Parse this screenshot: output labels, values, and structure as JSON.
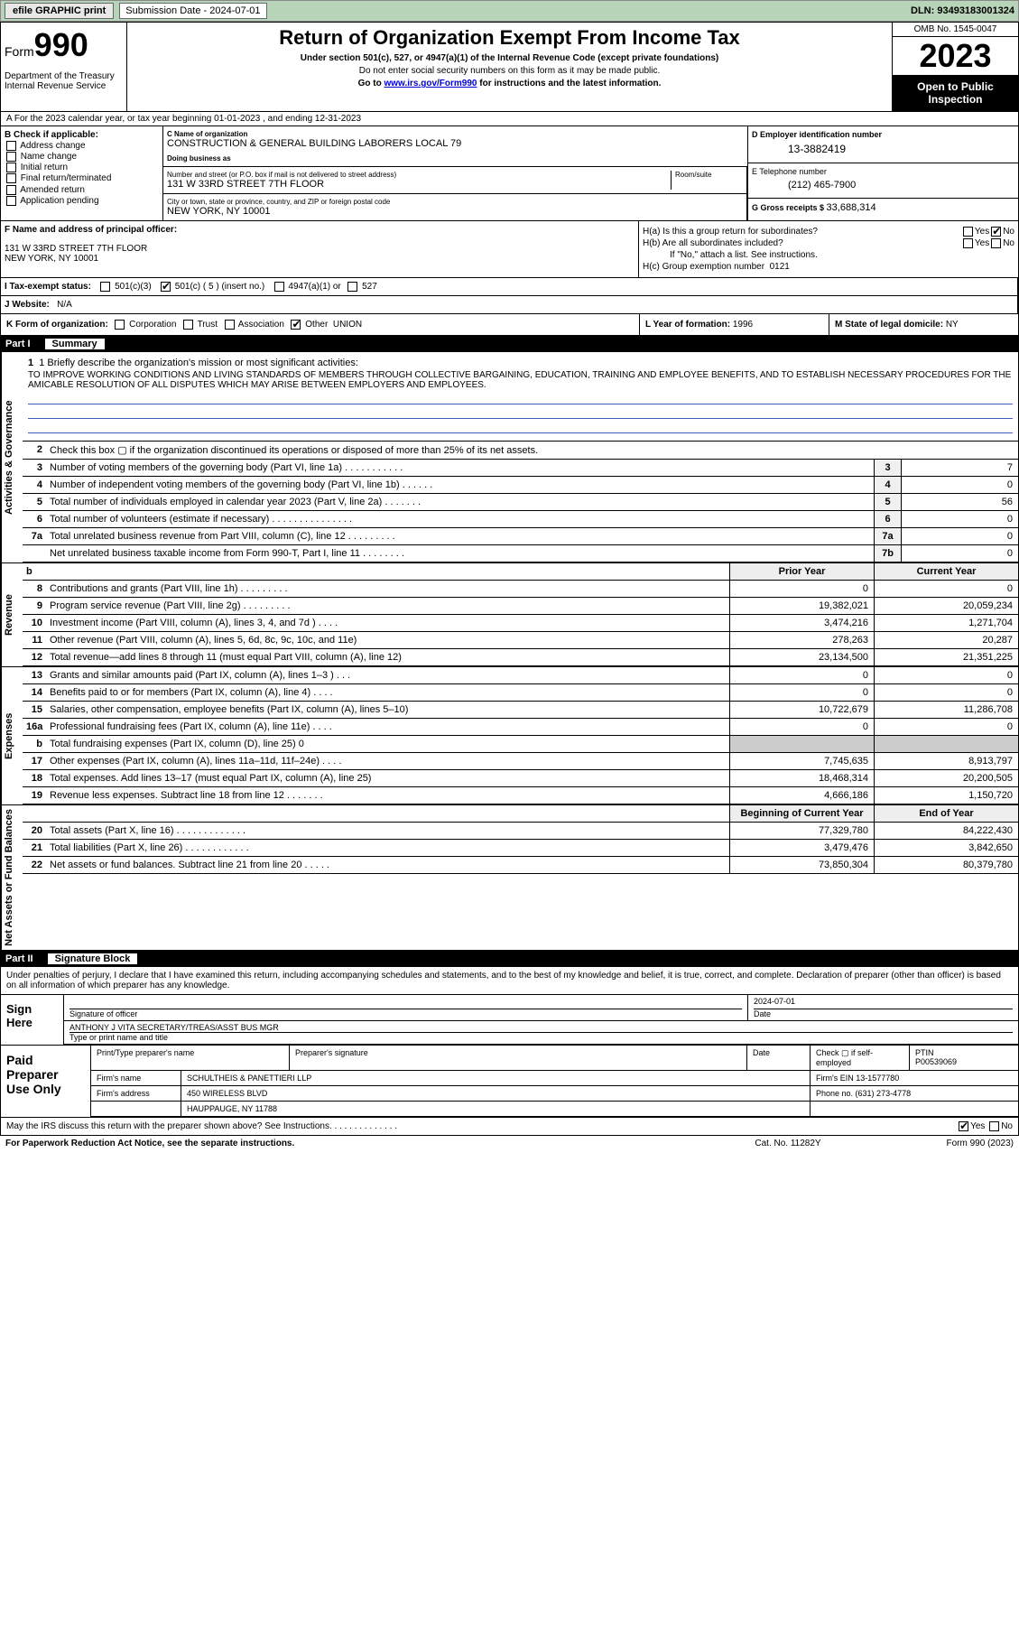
{
  "topbar": {
    "efile": "efile GRAPHIC print",
    "sub_label": "Submission Date - 2024-07-01",
    "dln": "DLN: 93493183001324"
  },
  "header": {
    "form_prefix": "Form",
    "form_num": "990",
    "title": "Return of Organization Exempt From Income Tax",
    "subtitle": "Under section 501(c), 527, or 4947(a)(1) of the Internal Revenue Code (except private foundations)",
    "ssn_note": "Do not enter social security numbers on this form as it may be made public.",
    "goto": "Go to ",
    "goto_link": "www.irs.gov/Form990",
    "goto_suffix": " for instructions and the latest information.",
    "dept": "Department of the Treasury Internal Revenue Service",
    "omb": "OMB No. 1545-0047",
    "year": "2023",
    "open": "Open to Public Inspection"
  },
  "section_a": "A  For the 2023 calendar year, or tax year beginning 01-01-2023   , and ending 12-31-2023",
  "col_b": {
    "hdr": "B Check if applicable:",
    "opts": [
      "Address change",
      "Name change",
      "Initial return",
      "Final return/terminated",
      "Amended return",
      "Application pending"
    ]
  },
  "col_c": {
    "name_lbl": "C Name of organization",
    "name": "CONSTRUCTION & GENERAL BUILDING LABORERS LOCAL 79",
    "dba_lbl": "Doing business as",
    "street_lbl": "Number and street (or P.O. box if mail is not delivered to street address)",
    "street": "131 W 33RD STREET 7TH FLOOR",
    "room_lbl": "Room/suite",
    "city_lbl": "City or town, state or province, country, and ZIP or foreign postal code",
    "city": "NEW YORK, NY  10001"
  },
  "col_d": {
    "ein_lbl": "D Employer identification number",
    "ein": "13-3882419",
    "tel_lbl": "E Telephone number",
    "tel": "(212) 465-7900",
    "gross_lbl": "G Gross receipts $ ",
    "gross": "33,688,314"
  },
  "col_f": {
    "lbl": "F Name and address of principal officer:",
    "addr1": "131 W 33RD STREET 7TH FLOOR",
    "addr2": "NEW YORK, NY  10001"
  },
  "col_h": {
    "ha": "H(a)  Is this a group return for subordinates?",
    "hb": "H(b)  Are all subordinates included?",
    "hb_note": "If \"No,\" attach a list. See instructions.",
    "hc": "H(c)  Group exemption number ",
    "hc_val": "0121",
    "yes": "Yes",
    "no": "No"
  },
  "row_i": {
    "lbl": "I   Tax-exempt status:",
    "o1": "501(c)(3)",
    "o2": "501(c) ( 5 ) (insert no.)",
    "o3": "4947(a)(1) or",
    "o4": "527"
  },
  "row_j": {
    "lbl": "J   Website: ",
    "val": "N/A"
  },
  "row_k": {
    "lbl": "K Form of organization:",
    "opts": [
      "Corporation",
      "Trust",
      "Association",
      "Other"
    ],
    "other_val": "UNION"
  },
  "row_l": {
    "lbl": "L Year of formation: ",
    "val": "1996"
  },
  "row_m": {
    "lbl": "M State of legal domicile: ",
    "val": "NY"
  },
  "parts": {
    "p1": "Part I",
    "p1_title": "Summary",
    "p2": "Part II",
    "p2_title": "Signature Block"
  },
  "mission": {
    "lbl": "1   Briefly describe the organization's mission or most significant activities:",
    "txt": "TO IMPROVE WORKING CONDITIONS AND LIVING STANDARDS OF MEMBERS THROUGH COLLECTIVE BARGAINING, EDUCATION, TRAINING AND EMPLOYEE BENEFITS, AND TO ESTABLISH NECESSARY PROCEDURES FOR THE AMICABLE RESOLUTION OF ALL DISPUTES WHICH MAY ARISE BETWEEN EMPLOYERS AND EMPLOYEES."
  },
  "gov_rows": [
    {
      "n": "2",
      "d": "Check this box ▢ if the organization discontinued its operations or disposed of more than 25% of its net assets.",
      "box": "",
      "v": ""
    },
    {
      "n": "3",
      "d": "Number of voting members of the governing body (Part VI, line 1a)  .  .  .  .  .  .  .  .  .  .  .",
      "box": "3",
      "v": "7"
    },
    {
      "n": "4",
      "d": "Number of independent voting members of the governing body (Part VI, line 1b)  .  .  .  .  .  .",
      "box": "4",
      "v": "0"
    },
    {
      "n": "5",
      "d": "Total number of individuals employed in calendar year 2023 (Part V, line 2a)  .  .  .  .  .  .  .",
      "box": "5",
      "v": "56"
    },
    {
      "n": "6",
      "d": "Total number of volunteers (estimate if necessary)   .  .  .  .  .  .  .  .  .  .  .  .  .  .  .",
      "box": "6",
      "v": "0"
    },
    {
      "n": "7a",
      "d": "Total unrelated business revenue from Part VIII, column (C), line 12  .  .  .  .  .  .  .  .  .",
      "box": "7a",
      "v": "0"
    },
    {
      "n": "",
      "d": "Net unrelated business taxable income from Form 990-T, Part I, line 11  .  .  .  .  .  .  .  .",
      "box": "7b",
      "v": "0"
    }
  ],
  "rev_hdr": {
    "b": "b",
    "py": "Prior Year",
    "cy": "Current Year"
  },
  "rev_rows": [
    {
      "n": "8",
      "d": "Contributions and grants (Part VIII, line 1h)   .  .  .  .  .  .  .  .  .",
      "py": "0",
      "cy": "0"
    },
    {
      "n": "9",
      "d": "Program service revenue (Part VIII, line 2g)   .  .  .  .  .  .  .  .  .",
      "py": "19,382,021",
      "cy": "20,059,234"
    },
    {
      "n": "10",
      "d": "Investment income (Part VIII, column (A), lines 3, 4, and 7d )   .  .  .  .",
      "py": "3,474,216",
      "cy": "1,271,704"
    },
    {
      "n": "11",
      "d": "Other revenue (Part VIII, column (A), lines 5, 6d, 8c, 9c, 10c, and 11e)",
      "py": "278,263",
      "cy": "20,287"
    },
    {
      "n": "12",
      "d": "Total revenue—add lines 8 through 11 (must equal Part VIII, column (A), line 12)",
      "py": "23,134,500",
      "cy": "21,351,225"
    }
  ],
  "exp_rows": [
    {
      "n": "13",
      "d": "Grants and similar amounts paid (Part IX, column (A), lines 1–3 )   .  .  .",
      "py": "0",
      "cy": "0"
    },
    {
      "n": "14",
      "d": "Benefits paid to or for members (Part IX, column (A), line 4)   .  .  .  .",
      "py": "0",
      "cy": "0"
    },
    {
      "n": "15",
      "d": "Salaries, other compensation, employee benefits (Part IX, column (A), lines 5–10)",
      "py": "10,722,679",
      "cy": "11,286,708"
    },
    {
      "n": "16a",
      "d": "Professional fundraising fees (Part IX, column (A), line 11e)   .  .  .  .",
      "py": "0",
      "cy": "0"
    },
    {
      "n": "b",
      "d": "Total fundraising expenses (Part IX, column (D), line 25) 0",
      "py": "",
      "cy": "",
      "shade": true
    },
    {
      "n": "17",
      "d": "Other expenses (Part IX, column (A), lines 11a–11d, 11f–24e)  .  .  .  .",
      "py": "7,745,635",
      "cy": "8,913,797"
    },
    {
      "n": "18",
      "d": "Total expenses. Add lines 13–17 (must equal Part IX, column (A), line 25)",
      "py": "18,468,314",
      "cy": "20,200,505"
    },
    {
      "n": "19",
      "d": "Revenue less expenses. Subtract line 18 from line 12  .  .  .  .  .  .  .",
      "py": "4,666,186",
      "cy": "1,150,720"
    }
  ],
  "na_hdr": {
    "py": "Beginning of Current Year",
    "cy": "End of Year"
  },
  "na_rows": [
    {
      "n": "20",
      "d": "Total assets (Part X, line 16)   .  .  .  .  .  .  .  .  .  .  .  .  .",
      "py": "77,329,780",
      "cy": "84,222,430"
    },
    {
      "n": "21",
      "d": "Total liabilities (Part X, line 26)   .  .  .  .  .  .  .  .  .  .  .  .",
      "py": "3,479,476",
      "cy": "3,842,650"
    },
    {
      "n": "22",
      "d": "Net assets or fund balances. Subtract line 21 from line 20  .  .  .  .  .",
      "py": "73,850,304",
      "cy": "80,379,780"
    }
  ],
  "side_labels": {
    "gov": "Activities & Governance",
    "rev": "Revenue",
    "exp": "Expenses",
    "na": "Net Assets or Fund Balances"
  },
  "perjury": "Under penalties of perjury, I declare that I have examined this return, including accompanying schedules and statements, and to the best of my knowledge and belief, it is true, correct, and complete. Declaration of preparer (other than officer) is based on all information of which preparer has any knowledge.",
  "sign": {
    "here": "Sign Here",
    "sig_lbl": "Signature of officer",
    "date_lbl": "Date",
    "date": "2024-07-01",
    "name": "ANTHONY J VITA  SECRETARY/TREAS/ASST BUS MGR",
    "name_lbl": "Type or print name and title"
  },
  "paid": {
    "hdr": "Paid Preparer Use Only",
    "r1": {
      "c1": "Print/Type preparer's name",
      "c2": "Preparer's signature",
      "c3": "Date",
      "c4": "Check ▢ if self-employed",
      "c5_lbl": "PTIN",
      "c5": "P00539069"
    },
    "r2": {
      "lbl": "Firm's name ",
      "val": "SCHULTHEIS & PANETTIERI LLP",
      "ein_lbl": "Firm's EIN ",
      "ein": "13-1577780"
    },
    "r3": {
      "lbl": "Firm's address ",
      "val": "450 WIRELESS BLVD",
      "ph_lbl": "Phone no. ",
      "ph": "(631) 273-4778"
    },
    "r3b": "HAUPPAUGE, NY  11788"
  },
  "discuss": {
    "txt": "May the IRS discuss this return with the preparer shown above? See Instructions.   .  .  .  .  .  .  .  .  .  .  .  .  .",
    "yes": "Yes",
    "no": "No"
  },
  "footer": {
    "l": "For Paperwork Reduction Act Notice, see the separate instructions.",
    "m": "Cat. No. 11282Y",
    "r": "Form 990 (2023)"
  }
}
